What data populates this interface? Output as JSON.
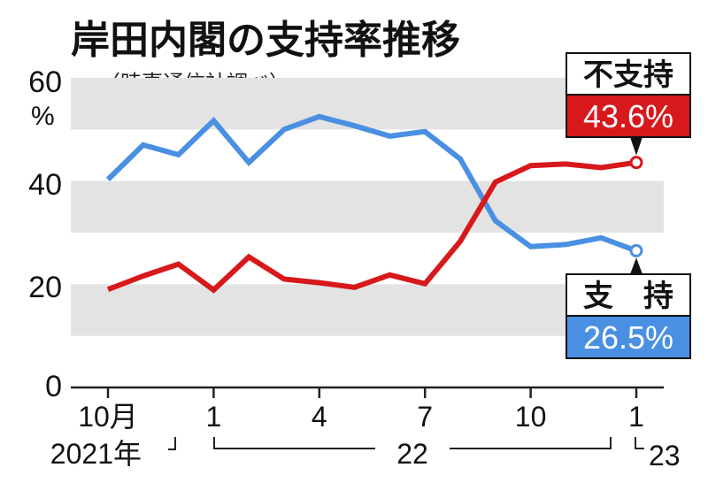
{
  "chart_data": {
    "type": "line",
    "title": "岸田内閣の支持率推移",
    "source_note": "（時事通信社調べ）",
    "y_unit": "%",
    "ylim": [
      0,
      60
    ],
    "y_ticks": [
      "0",
      "20",
      "40",
      "60"
    ],
    "grid": "alternating horizontal bands every 10",
    "x_ticks": [
      {
        "index": 0,
        "label": "10月"
      },
      {
        "index": 3,
        "label": "1"
      },
      {
        "index": 6,
        "label": "4"
      },
      {
        "index": 9,
        "label": "7"
      },
      {
        "index": 12,
        "label": "10"
      },
      {
        "index": 15,
        "label": "1"
      }
    ],
    "year_labels": {
      "first": "2021年",
      "second": "22",
      "third": "23"
    },
    "series": [
      {
        "name": "支持",
        "callout_label": "支　持",
        "color": "#4a90e2",
        "values": [
          40.3,
          47.0,
          45.1,
          51.7,
          43.6,
          50.0,
          52.5,
          50.7,
          48.7,
          49.6,
          44.3,
          32.3,
          27.3,
          27.7,
          29.0,
          26.5
        ],
        "latest_label": "26.5%"
      },
      {
        "name": "不支持",
        "callout_label": "不支持",
        "color": "#d7191c",
        "values": [
          19.0,
          21.6,
          23.9,
          18.9,
          25.3,
          21.0,
          20.3,
          19.4,
          21.8,
          20.1,
          28.3,
          39.8,
          43.0,
          43.3,
          42.6,
          43.6
        ],
        "latest_label": "43.6%"
      }
    ]
  }
}
